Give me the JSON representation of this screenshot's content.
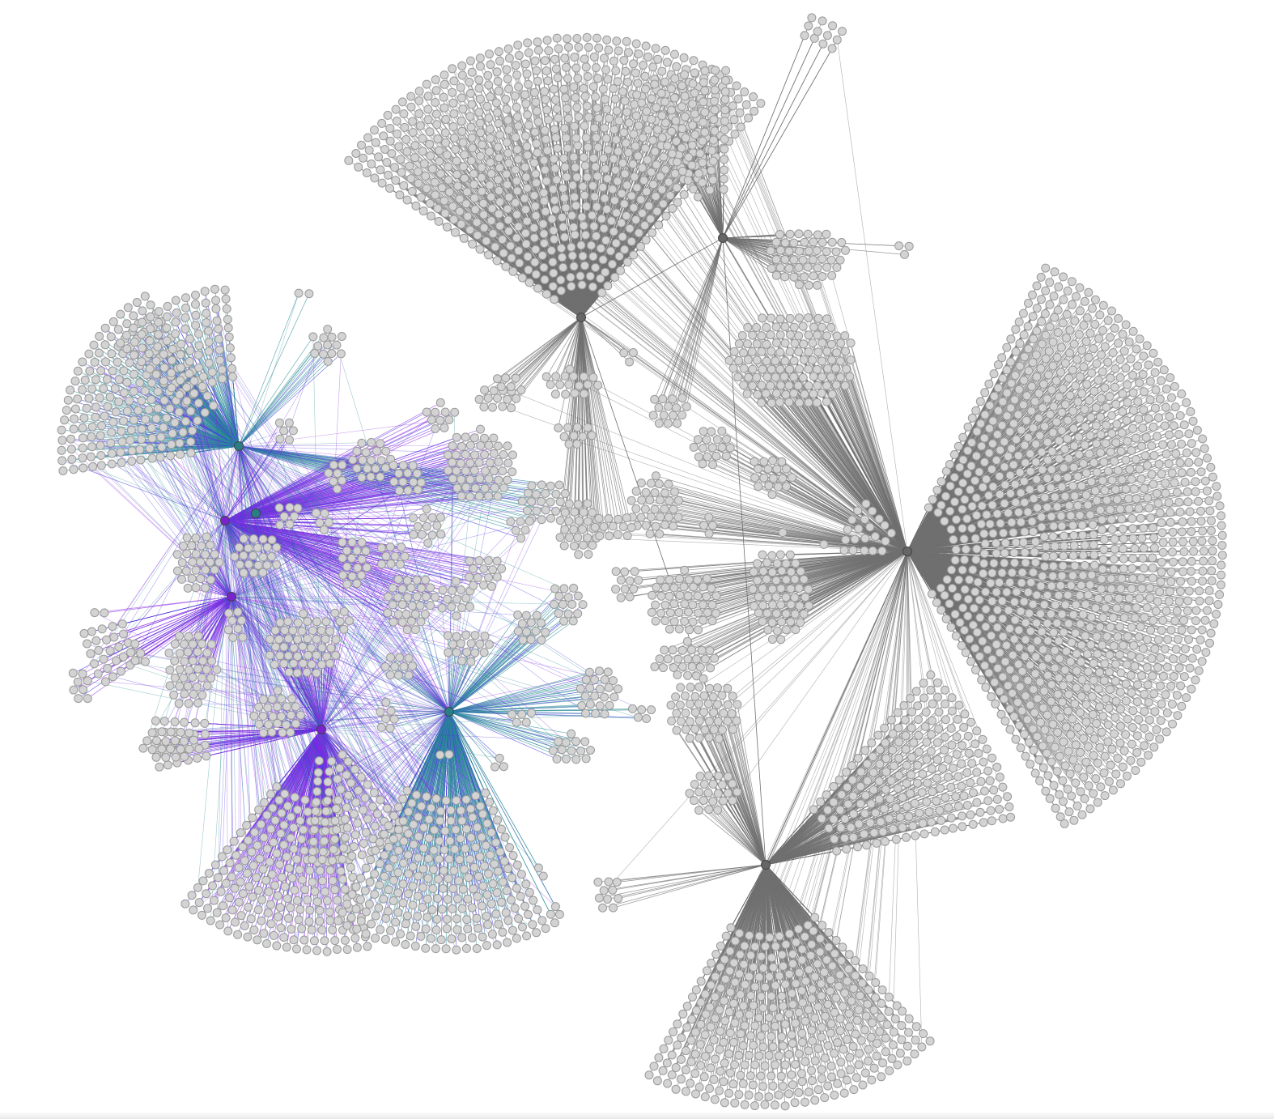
{
  "graph": {
    "type": "hub-and-spoke network",
    "node_fill": "#d3d3d3",
    "node_stroke": "#9a9a9a",
    "hub_fill": "#6f6f6f",
    "edge_colors": {
      "gray": "#707070",
      "teal": "#2a8c95",
      "blue": "#4a3ae0",
      "violet": "#8a2be2"
    },
    "hub_colors": {
      "gray": "#666666",
      "teal": "#2a7f86",
      "violet": "#7a22d0"
    }
  }
}
